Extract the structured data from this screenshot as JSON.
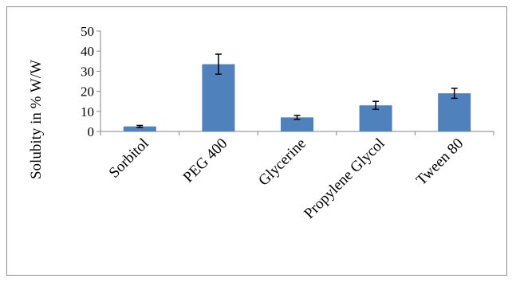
{
  "chart_data": {
    "type": "bar",
    "title": "",
    "xlabel": "",
    "ylabel": "Solubity in % W/W",
    "categories": [
      "Sorbitol",
      "PEG 400",
      "Glycerine",
      "Propylene Glycol",
      "Tween 80"
    ],
    "values": [
      2.5,
      33.5,
      7,
      13,
      19
    ],
    "errors": [
      0.5,
      5,
      1,
      2,
      2.5
    ],
    "ylim": [
      0,
      50
    ],
    "yticks": [
      0,
      10,
      20,
      30,
      40,
      50
    ],
    "grid": false,
    "legend": "none",
    "bar_color": "#4f81bd"
  }
}
